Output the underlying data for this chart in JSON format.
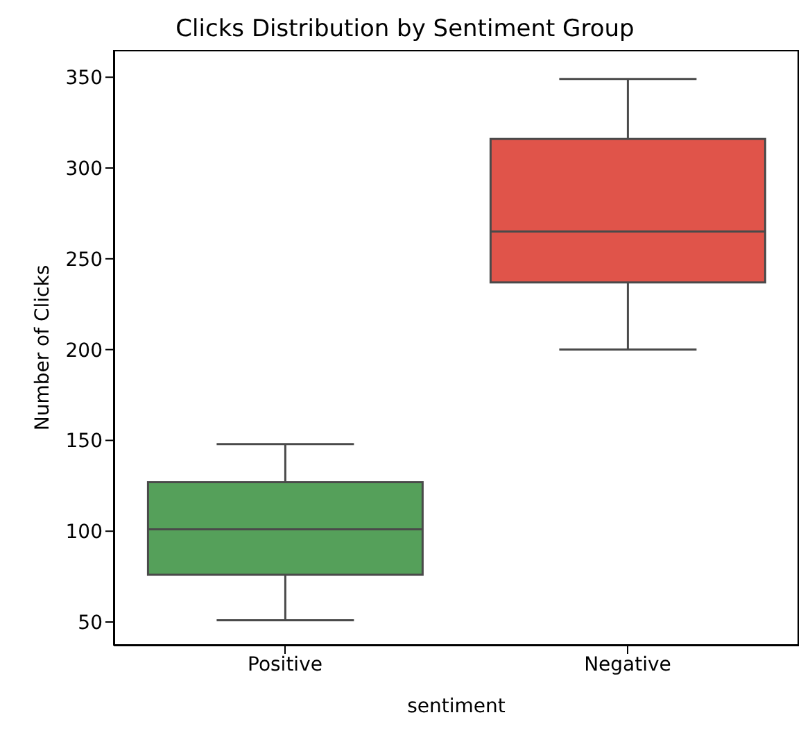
{
  "chart_data": {
    "type": "box",
    "title": "Clicks Distribution by Sentiment Group",
    "xlabel": "sentiment",
    "ylabel": "Number of Clicks",
    "categories": [
      "Positive",
      "Negative"
    ],
    "boxes": [
      {
        "low": 51,
        "q1": 76,
        "median": 101,
        "q3": 127,
        "high": 148
      },
      {
        "low": 200,
        "q1": 237,
        "median": 265,
        "q3": 316,
        "high": 349
      }
    ],
    "colors": [
      "#55a05a",
      "#e0544a"
    ],
    "ylim": [
      37,
      365
    ],
    "yticks": [
      50,
      100,
      150,
      200,
      250,
      300,
      350
    ]
  }
}
